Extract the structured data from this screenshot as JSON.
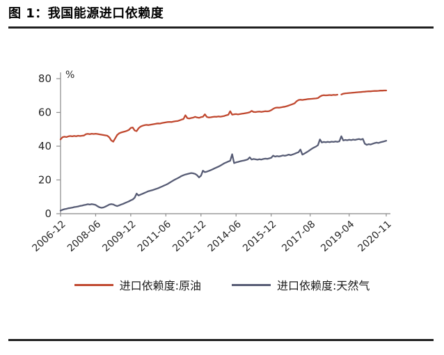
{
  "figure": {
    "title": "图 1：我国能源进口依赖度"
  },
  "chart_data": {
    "type": "line",
    "title": "图 1：我国能源进口依赖度",
    "ylabel": "%",
    "ylim": [
      0,
      80
    ],
    "yticks": [
      0,
      20,
      40,
      60,
      80
    ],
    "grid": false,
    "legend_position": "bottom",
    "x_start": "2006-12",
    "x_end": "2020-11",
    "x_frequency": "monthly",
    "x_tick_labels": [
      "2006-12",
      "2008-06",
      "2009-12",
      "2011-06",
      "2012-12",
      "2014-06",
      "2015-12",
      "2017-08",
      "2019-04",
      "2020-11"
    ],
    "x_tick_month_index": [
      0,
      18,
      36,
      54,
      72,
      90,
      108,
      128,
      148,
      167
    ],
    "series": [
      {
        "name": "进口依赖度:原油",
        "color": "#c0482f",
        "values": [
          44.0,
          45.3,
          45.6,
          45.4,
          45.8,
          46.0,
          45.8,
          46.1,
          45.9,
          46.2,
          46.0,
          46.2,
          46.3,
          47.1,
          47.3,
          47.1,
          47.4,
          47.2,
          47.4,
          47.2,
          47.0,
          46.8,
          46.6,
          46.4,
          46.2,
          45.2,
          43.4,
          42.7,
          44.6,
          46.6,
          47.6,
          48.1,
          48.4,
          48.7,
          49.1,
          49.6,
          50.8,
          51.1,
          49.3,
          48.9,
          50.6,
          51.6,
          52.1,
          52.4,
          52.6,
          52.5,
          52.7,
          52.9,
          53.1,
          53.3,
          53.5,
          53.4,
          53.7,
          53.9,
          54.1,
          54.3,
          54.4,
          54.3,
          54.6,
          54.8,
          54.9,
          55.3,
          55.7,
          56.1,
          58.3,
          56.6,
          56.4,
          56.7,
          56.9,
          57.4,
          57.0,
          56.8,
          57.2,
          57.4,
          58.9,
          57.3,
          57.0,
          57.1,
          57.3,
          57.5,
          57.4,
          57.6,
          57.5,
          57.7,
          57.9,
          58.3,
          58.6,
          60.7,
          58.7,
          58.9,
          59.0,
          58.8,
          59.0,
          59.2,
          59.4,
          59.6,
          59.8,
          60.1,
          60.9,
          60.3,
          60.2,
          60.4,
          60.5,
          60.3,
          60.5,
          60.7,
          60.6,
          60.8,
          61.3,
          62.1,
          62.7,
          62.9,
          62.8,
          63.0,
          63.2,
          63.4,
          63.7,
          64.1,
          64.5,
          64.9,
          65.4,
          66.6,
          67.3,
          67.5,
          67.4,
          67.6,
          67.7,
          67.9,
          68.0,
          68.1,
          68.2,
          68.3,
          68.5,
          69.4,
          70.0,
          70.2,
          70.1,
          70.2,
          70.3,
          70.2,
          70.4,
          70.3,
          70.5,
          null,
          70.6,
          71.1,
          71.3,
          71.4,
          71.5,
          71.6,
          71.7,
          71.8,
          71.9,
          72.0,
          72.1,
          72.2,
          72.3,
          72.4,
          72.5,
          72.5,
          72.6,
          72.7,
          72.7,
          72.8,
          72.9,
          72.9,
          73.0,
          73.0
        ]
      },
      {
        "name": "进口依赖度:天然气",
        "color": "#565b74",
        "values": [
          1.8,
          2.3,
          2.7,
          2.9,
          3.2,
          3.4,
          3.6,
          3.9,
          4.1,
          4.3,
          4.6,
          4.8,
          5.1,
          5.3,
          5.6,
          5.4,
          5.7,
          5.5,
          5.2,
          4.4,
          3.8,
          3.5,
          3.7,
          4.2,
          4.8,
          5.4,
          5.7,
          5.5,
          4.9,
          4.5,
          4.9,
          5.4,
          5.8,
          6.3,
          6.8,
          7.3,
          7.9,
          8.4,
          9.5,
          11.9,
          10.8,
          11.3,
          11.8,
          12.3,
          12.8,
          13.3,
          13.6,
          13.9,
          14.3,
          14.7,
          15.1,
          15.6,
          16.1,
          16.6,
          17.1,
          17.7,
          18.4,
          19.1,
          19.8,
          20.4,
          21.0,
          21.6,
          22.3,
          22.8,
          23.2,
          23.5,
          23.8,
          24.1,
          23.9,
          23.6,
          22.8,
          21.5,
          22.5,
          25.5,
          24.6,
          24.9,
          25.3,
          25.8,
          26.3,
          26.9,
          27.4,
          27.9,
          28.5,
          29.2,
          29.9,
          30.4,
          30.9,
          31.4,
          35.2,
          30.0,
          30.4,
          30.7,
          31.0,
          31.3,
          31.5,
          31.8,
          32.2,
          33.4,
          32.1,
          32.4,
          32.2,
          32.0,
          32.3,
          32.1,
          32.4,
          32.6,
          32.5,
          32.8,
          33.1,
          34.4,
          33.8,
          34.1,
          33.9,
          34.2,
          34.5,
          34.3,
          34.6,
          35.0,
          34.7,
          35.1,
          35.5,
          36.0,
          36.4,
          38.0,
          35.0,
          35.6,
          36.3,
          37.0,
          37.8,
          38.6,
          39.2,
          39.8,
          40.6,
          44.0,
          42.2,
          42.5,
          42.3,
          42.6,
          42.4,
          42.7,
          42.5,
          42.8,
          42.6,
          42.9,
          45.9,
          43.4,
          43.7,
          43.5,
          43.8,
          43.6,
          43.9,
          43.7,
          44.0,
          44.2,
          43.9,
          44.3,
          41.5,
          40.8,
          41.2,
          41.0,
          41.4,
          41.8,
          42.1,
          41.9,
          42.3,
          42.6,
          42.9,
          43.2
        ]
      }
    ]
  }
}
